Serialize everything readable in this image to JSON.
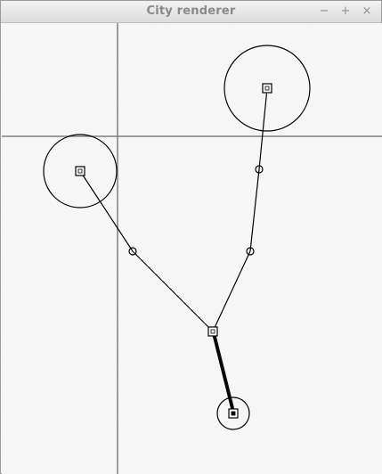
{
  "window": {
    "title": "City renderer",
    "controls": {
      "minimize": "−",
      "maximize": "+",
      "close": "×"
    }
  },
  "colors": {
    "titlebar_text": "#8a8a8a",
    "canvas_background": "#f5f5f5",
    "axis_line": "#7f7f7f",
    "stroke": "#000000"
  }
}
